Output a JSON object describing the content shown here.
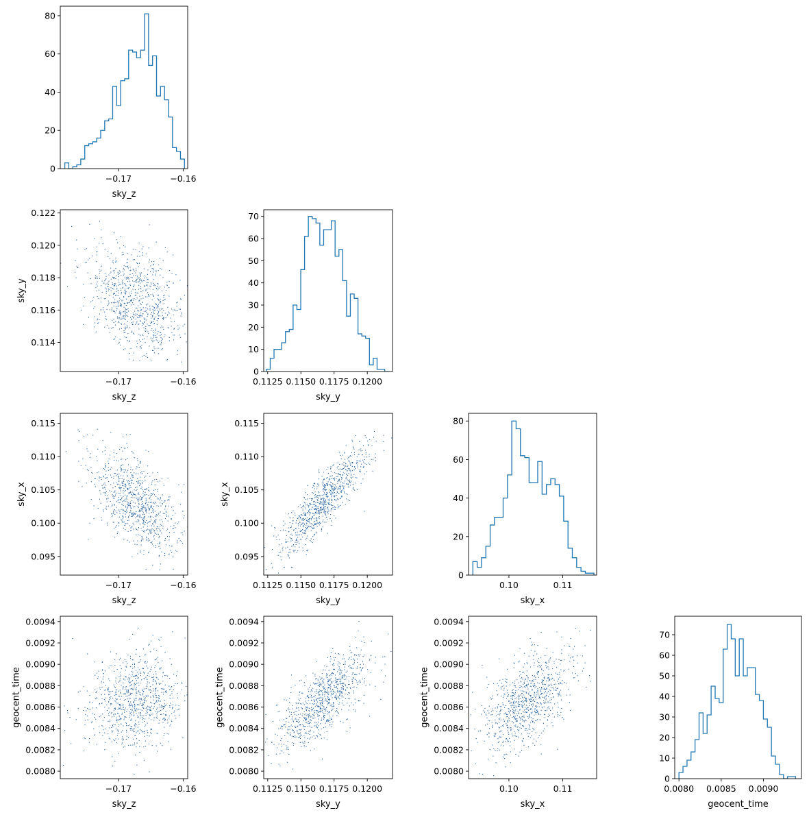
{
  "figure": {
    "type": "corner_plot",
    "parameters": [
      "sky_z",
      "sky_y",
      "sky_x",
      "geocent_time"
    ]
  },
  "colors": {
    "hist": "#1f77b4",
    "scatter": "#1f5fa0",
    "frame": "#000000"
  },
  "chart_data": [
    {
      "type": "bar",
      "style": "step",
      "xlabel": "sky_z",
      "ylabel": "",
      "xlim": [
        -0.179,
        -0.1593
      ],
      "ylim": [
        0,
        85
      ],
      "xticks": [
        -0.17,
        -0.16
      ],
      "xtick_labels": [
        "−0.17",
        "−0.16"
      ],
      "yticks": [
        0,
        20,
        40,
        60,
        80
      ],
      "ytick_labels": [
        "0",
        "20",
        "40",
        "60",
        "80"
      ],
      "bin_edges_range": [
        -0.1783,
        -0.1598
      ],
      "values": [
        3,
        0,
        1,
        2,
        5,
        12,
        13,
        14,
        16,
        20,
        25,
        26,
        43,
        33,
        46,
        47,
        62,
        61,
        58,
        62,
        81,
        54,
        59,
        38,
        43,
        36,
        27,
        11,
        9,
        5
      ]
    },
    {
      "type": "scatter",
      "xlabel": "sky_z",
      "ylabel": "sky_y",
      "xlim": [
        -0.179,
        -0.1593
      ],
      "ylim": [
        0.1122,
        0.1222
      ],
      "xticks": [
        -0.17,
        -0.16
      ],
      "xtick_labels": [
        "−0.17",
        "−0.16"
      ],
      "yticks": [
        0.114,
        0.116,
        0.118,
        0.12,
        0.122
      ],
      "ytick_labels": [
        "0.114",
        "0.116",
        "0.118",
        "0.120",
        "0.122"
      ],
      "center": [
        -0.1675,
        0.1166
      ],
      "std": [
        0.0037,
        0.0017
      ],
      "correlation": -0.4,
      "n_points": 900
    },
    {
      "type": "bar",
      "style": "step",
      "xlabel": "sky_y",
      "ylabel": "",
      "xlim": [
        0.1122,
        0.1219
      ],
      "ylim": [
        0,
        73
      ],
      "xticks": [
        0.1125,
        0.115,
        0.1175,
        0.12
      ],
      "xtick_labels": [
        "0.1125",
        "0.1150",
        "0.1175",
        "0.1200"
      ],
      "yticks": [
        0,
        10,
        20,
        30,
        40,
        50,
        60,
        70
      ],
      "ytick_labels": [
        "0",
        "10",
        "20",
        "30",
        "40",
        "50",
        "60",
        "70"
      ],
      "bin_edges_range": [
        0.1124,
        0.1216
      ],
      "values": [
        1,
        6,
        10,
        10,
        13,
        18,
        19,
        30,
        28,
        46,
        61,
        70,
        69,
        67,
        57,
        64,
        64,
        68,
        52,
        55,
        41,
        25,
        35,
        33,
        17,
        16,
        15,
        3,
        6,
        1,
        1,
        0
      ]
    },
    {
      "type": "scatter",
      "xlabel": "sky_z",
      "ylabel": "sky_x",
      "xlim": [
        -0.179,
        -0.1593
      ],
      "ylim": [
        0.0922,
        0.1165
      ],
      "xticks": [
        -0.17,
        -0.16
      ],
      "xtick_labels": [
        "−0.17",
        "−0.16"
      ],
      "yticks": [
        0.095,
        0.1,
        0.105,
        0.11,
        0.115
      ],
      "ytick_labels": [
        "0.095",
        "0.100",
        "0.105",
        "0.110",
        "0.115"
      ],
      "center": [
        -0.1675,
        0.1033
      ],
      "std": [
        0.0037,
        0.0042
      ],
      "correlation": -0.6,
      "n_points": 900
    },
    {
      "type": "scatter",
      "xlabel": "sky_y",
      "ylabel": "sky_x",
      "xlim": [
        0.1122,
        0.1219
      ],
      "ylim": [
        0.0922,
        0.1165
      ],
      "xticks": [
        0.1125,
        0.115,
        0.1175,
        0.12
      ],
      "xtick_labels": [
        "0.1125",
        "0.1150",
        "0.1175",
        "0.1200"
      ],
      "yticks": [
        0.095,
        0.1,
        0.105,
        0.11,
        0.115
      ],
      "ytick_labels": [
        "0.095",
        "0.100",
        "0.105",
        "0.110",
        "0.115"
      ],
      "center": [
        0.1166,
        0.1033
      ],
      "std": [
        0.0017,
        0.0042
      ],
      "correlation": 0.88,
      "n_points": 900
    },
    {
      "type": "bar",
      "style": "step",
      "xlabel": "sky_x",
      "ylabel": "",
      "xlim": [
        0.0925,
        0.1163
      ],
      "ylim": [
        0,
        84
      ],
      "xticks": [
        0.1,
        0.11
      ],
      "xtick_labels": [
        "0.10",
        "0.11"
      ],
      "yticks": [
        0,
        20,
        40,
        60,
        80
      ],
      "ytick_labels": [
        "0",
        "20",
        "40",
        "60",
        "80"
      ],
      "bin_edges_range": [
        0.0933,
        0.1158
      ],
      "values": [
        7,
        4,
        9,
        15,
        26,
        30,
        30,
        40,
        52,
        80,
        76,
        62,
        61,
        48,
        48,
        59,
        42,
        47,
        50,
        47,
        41,
        28,
        14,
        9,
        4,
        2,
        1,
        1
      ]
    },
    {
      "type": "scatter",
      "xlabel": "sky_z",
      "ylabel": "geocent_time",
      "xlim": [
        -0.179,
        -0.1593
      ],
      "ylim": [
        0.00793,
        0.00945
      ],
      "xticks": [
        -0.17,
        -0.16
      ],
      "xtick_labels": [
        "−0.17",
        "−0.16"
      ],
      "yticks": [
        0.008,
        0.0082,
        0.0084,
        0.0086,
        0.0088,
        0.009,
        0.0092,
        0.0094
      ],
      "ytick_labels": [
        "0.0080",
        "0.0082",
        "0.0084",
        "0.0086",
        "0.0088",
        "0.0090",
        "0.0092",
        "0.0094"
      ],
      "center": [
        -0.1675,
        0.00866
      ],
      "std": [
        0.0037,
        0.00023
      ],
      "correlation": 0.18,
      "n_points": 900
    },
    {
      "type": "scatter",
      "xlabel": "sky_y",
      "ylabel": "geocent_time",
      "xlim": [
        0.1122,
        0.1219
      ],
      "ylim": [
        0.00793,
        0.00945
      ],
      "xticks": [
        0.1125,
        0.115,
        0.1175,
        0.12
      ],
      "xtick_labels": [
        "0.1125",
        "0.1150",
        "0.1175",
        "0.1200"
      ],
      "yticks": [
        0.008,
        0.0082,
        0.0084,
        0.0086,
        0.0088,
        0.009,
        0.0092,
        0.0094
      ],
      "ytick_labels": [
        "0.0080",
        "0.0082",
        "0.0084",
        "0.0086",
        "0.0088",
        "0.0090",
        "0.0092",
        "0.0094"
      ],
      "center": [
        0.1166,
        0.00866
      ],
      "std": [
        0.0017,
        0.00023
      ],
      "correlation": 0.72,
      "n_points": 900
    },
    {
      "type": "scatter",
      "xlabel": "sky_x",
      "ylabel": "geocent_time",
      "xlim": [
        0.0925,
        0.1163
      ],
      "ylim": [
        0.00793,
        0.00945
      ],
      "xticks": [
        0.1,
        0.11
      ],
      "xtick_labels": [
        "0.10",
        "0.11"
      ],
      "yticks": [
        0.008,
        0.0082,
        0.0084,
        0.0086,
        0.0088,
        0.009,
        0.0092,
        0.0094
      ],
      "ytick_labels": [
        "0.0080",
        "0.0082",
        "0.0084",
        "0.0086",
        "0.0088",
        "0.0090",
        "0.0092",
        "0.0094"
      ],
      "center": [
        0.1033,
        0.00866
      ],
      "std": [
        0.0042,
        0.00023
      ],
      "correlation": 0.55,
      "n_points": 900
    },
    {
      "type": "bar",
      "style": "step",
      "xlabel": "geocent_time",
      "ylabel": "",
      "xlim": [
        0.00795,
        0.00945
      ],
      "ylim": [
        0,
        79
      ],
      "xticks": [
        0.008,
        0.0085,
        0.009
      ],
      "xtick_labels": [
        "0.0080",
        "0.0085",
        "0.0090"
      ],
      "yticks": [
        0,
        10,
        20,
        30,
        40,
        50,
        60,
        70
      ],
      "ytick_labels": [
        "0",
        "10",
        "20",
        "30",
        "40",
        "50",
        "60",
        "70"
      ],
      "bin_edges_range": [
        0.008,
        0.00938
      ],
      "values": [
        3,
        6,
        9,
        13,
        19,
        32,
        22,
        31,
        45,
        39,
        37,
        63,
        75,
        68,
        50,
        68,
        50,
        54,
        54,
        41,
        38,
        29,
        25,
        11,
        7,
        2,
        0,
        1,
        1
      ]
    }
  ]
}
